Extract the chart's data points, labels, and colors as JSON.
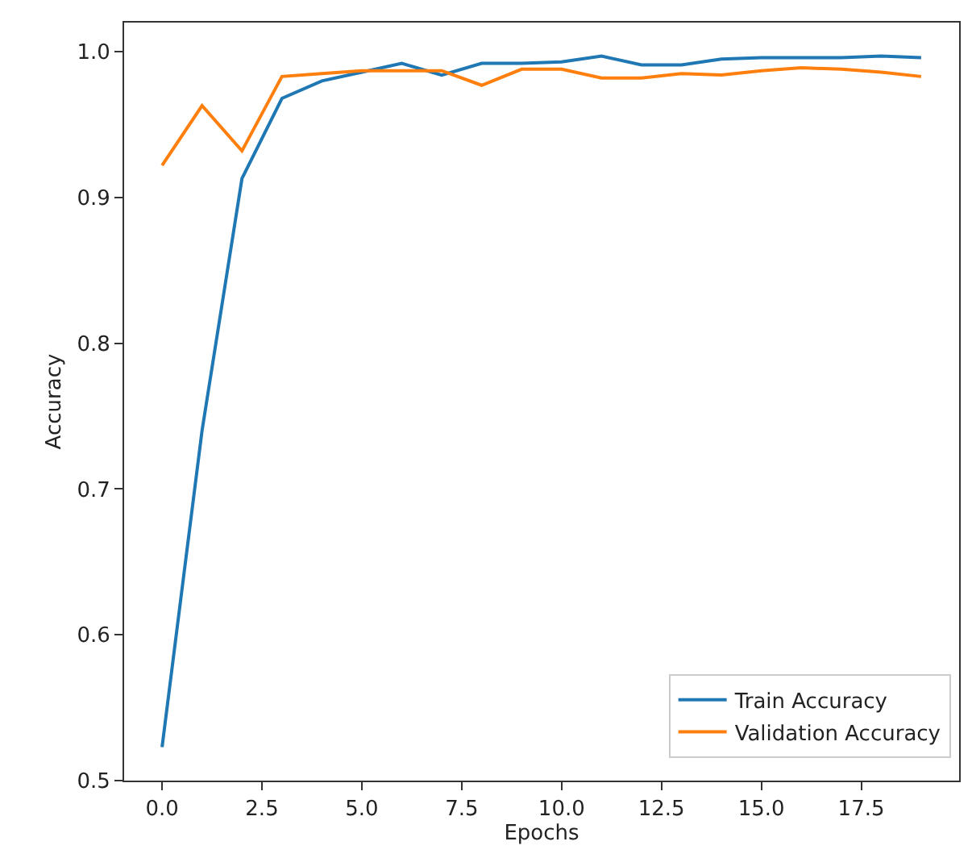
{
  "chart_data": {
    "type": "line",
    "xlabel": "Epochs",
    "ylabel": "Accuracy",
    "x": [
      0,
      1,
      2,
      3,
      4,
      5,
      6,
      7,
      8,
      9,
      10,
      11,
      12,
      13,
      14,
      15,
      16,
      17,
      18,
      19
    ],
    "series": [
      {
        "name": "Train Accuracy",
        "color": "#1f77b4",
        "values": [
          0.523,
          0.74,
          0.913,
          0.968,
          0.98,
          0.986,
          0.992,
          0.984,
          0.992,
          0.992,
          0.993,
          0.997,
          0.991,
          0.991,
          0.995,
          0.996,
          0.996,
          0.996,
          0.997,
          0.996
        ]
      },
      {
        "name": "Validation Accuracy",
        "color": "#ff7f0e",
        "values": [
          0.922,
          0.963,
          0.932,
          0.983,
          0.985,
          0.987,
          0.987,
          0.987,
          0.977,
          0.988,
          0.988,
          0.982,
          0.982,
          0.985,
          0.984,
          0.987,
          0.989,
          0.988,
          0.986,
          0.983
        ]
      }
    ],
    "xlim": [
      -0.95,
      19.95
    ],
    "ylim": [
      0.5,
      1.02
    ],
    "xticks": [
      {
        "value": 0,
        "label": "0.0"
      },
      {
        "value": 2.5,
        "label": "2.5"
      },
      {
        "value": 5,
        "label": "5.0"
      },
      {
        "value": 7.5,
        "label": "7.5"
      },
      {
        "value": 10,
        "label": "10.0"
      },
      {
        "value": 12.5,
        "label": "12.5"
      },
      {
        "value": 15,
        "label": "15.0"
      },
      {
        "value": 17.5,
        "label": "17.5"
      }
    ],
    "yticks": [
      0.5,
      0.6,
      0.7,
      0.8,
      0.9,
      {
        "value": 1.0,
        "label": "1.0"
      }
    ],
    "legend": "bottom right",
    "marker": "none",
    "line_style": "solid"
  }
}
